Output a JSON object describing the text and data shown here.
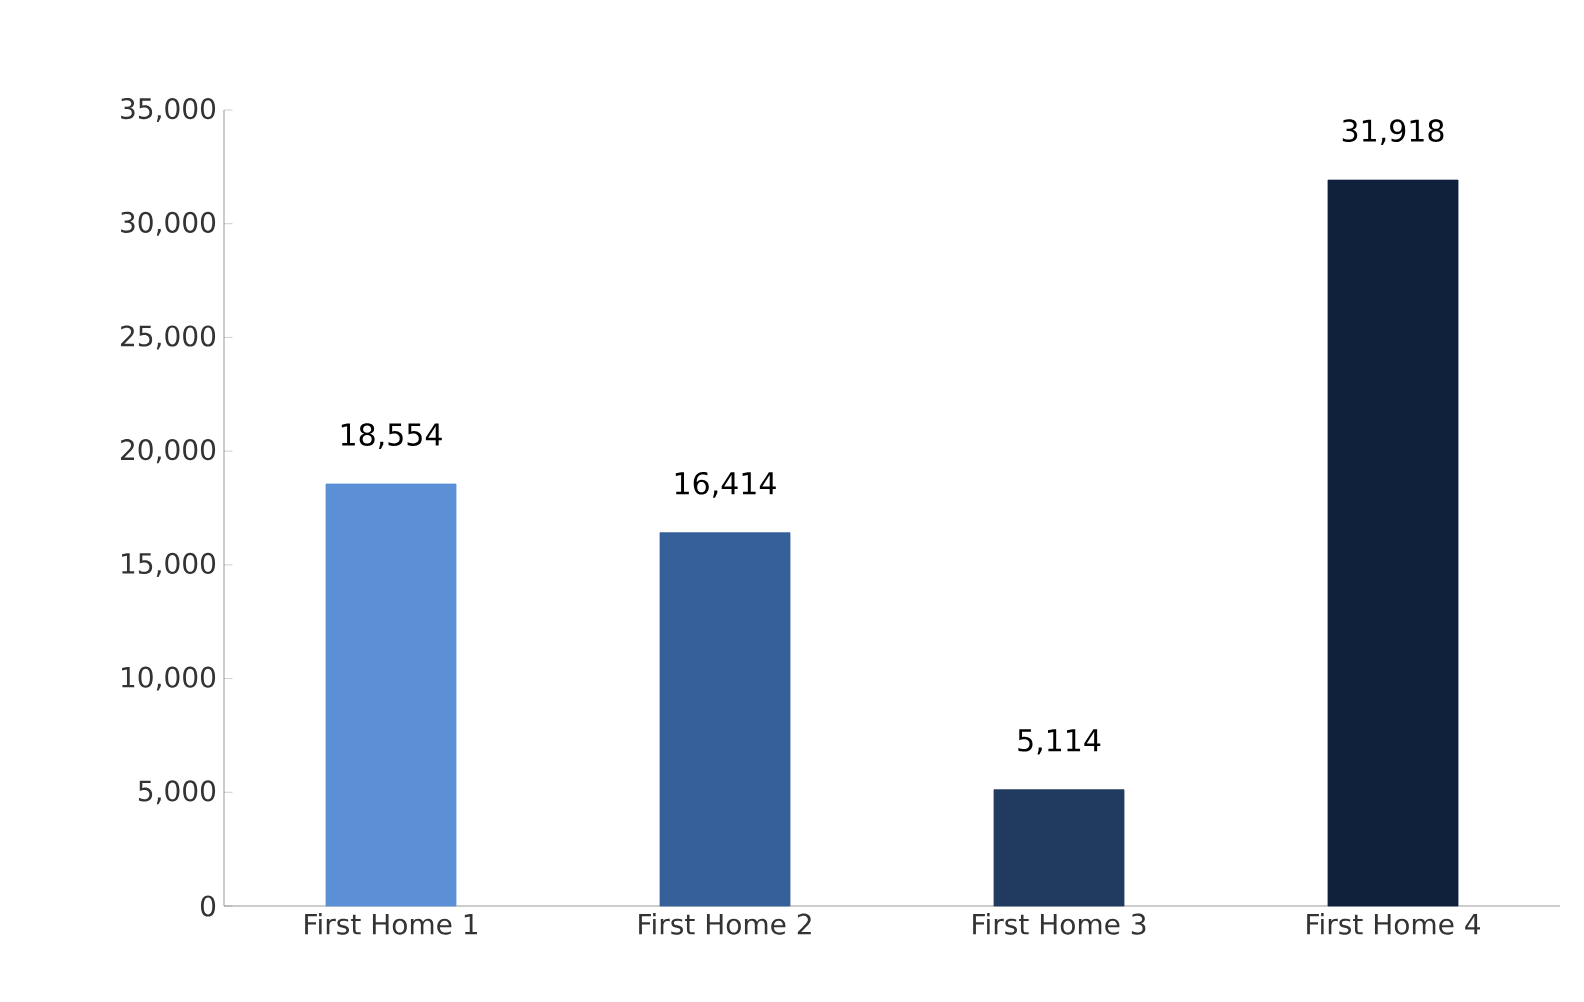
{
  "chart_data": {
    "type": "bar",
    "categories": [
      "First Home 1",
      "First Home 2",
      "First Home 3",
      "First Home 4"
    ],
    "values": [
      18554,
      16414,
      5114,
      31918
    ],
    "colors": [
      "#5b8fd6",
      "#35609a",
      "#213a60",
      "#10213b"
    ],
    "value_labels": [
      "18,554",
      "16,414",
      "5,114",
      "31,918"
    ],
    "ylim": [
      0,
      35000
    ],
    "yticks": [
      {
        "value": 0,
        "label": "0"
      },
      {
        "value": 5000,
        "label": "5,000"
      },
      {
        "value": 10000,
        "label": "10,000"
      },
      {
        "value": 15000,
        "label": "15,000"
      },
      {
        "value": 20000,
        "label": "20,000"
      },
      {
        "value": 25000,
        "label": "25,000"
      },
      {
        "value": 30000,
        "label": "30,000"
      },
      {
        "value": 35000,
        "label": "35,000"
      }
    ],
    "grid": false
  }
}
